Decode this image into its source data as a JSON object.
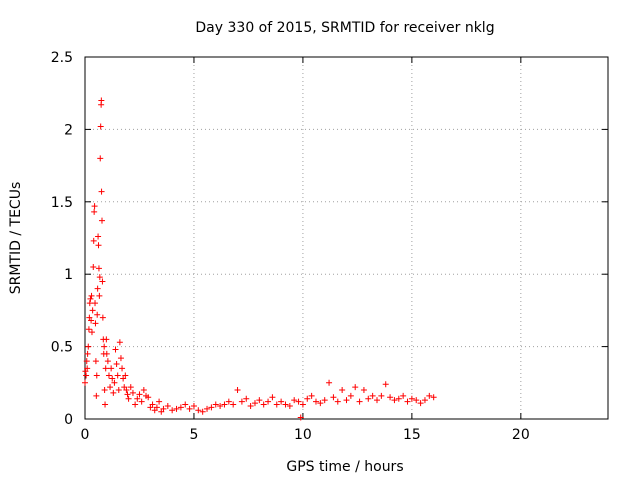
{
  "chart_data": {
    "type": "scatter",
    "title": "Day 330 of 2015, SRMTID for receiver nklg",
    "xlabel": "GPS time / hours",
    "ylabel": "SRMTID / TECUs",
    "xlim": [
      0,
      24
    ],
    "ylim": [
      0,
      2.5
    ],
    "grid": true,
    "marker": "+",
    "color": "#ff0000",
    "x_ticks": [
      {
        "value": 0,
        "label": "0"
      },
      {
        "value": 5,
        "label": "5"
      },
      {
        "value": 10,
        "label": "10"
      },
      {
        "value": 15,
        "label": "15"
      },
      {
        "value": 20,
        "label": "20"
      }
    ],
    "y_ticks": [
      {
        "value": 0,
        "label": "0"
      },
      {
        "value": 0.5,
        "label": "0.5"
      },
      {
        "value": 1,
        "label": "1"
      },
      {
        "value": 1.5,
        "label": "1.5"
      },
      {
        "value": 2,
        "label": "2"
      },
      {
        "value": 2.5,
        "label": "2.5"
      }
    ],
    "series": [
      {
        "name": "SRMTID",
        "points": [
          [
            0.0,
            0.25
          ],
          [
            0.02,
            0.33
          ],
          [
            0.05,
            0.3
          ],
          [
            0.08,
            0.4
          ],
          [
            0.1,
            0.35
          ],
          [
            0.12,
            0.45
          ],
          [
            0.15,
            0.5
          ],
          [
            0.18,
            0.62
          ],
          [
            0.2,
            0.7
          ],
          [
            0.22,
            0.8
          ],
          [
            0.25,
            0.83
          ],
          [
            0.28,
            0.68
          ],
          [
            0.3,
            0.85
          ],
          [
            0.32,
            0.6
          ],
          [
            0.35,
            0.75
          ],
          [
            0.38,
            1.05
          ],
          [
            0.4,
            1.23
          ],
          [
            0.42,
            1.43
          ],
          [
            0.44,
            1.47
          ],
          [
            0.46,
            0.8
          ],
          [
            0.48,
            0.66
          ],
          [
            0.5,
            0.4
          ],
          [
            0.52,
            0.16
          ],
          [
            0.54,
            0.3
          ],
          [
            0.56,
            0.72
          ],
          [
            0.58,
            0.9
          ],
          [
            0.6,
            1.26
          ],
          [
            0.62,
            1.2
          ],
          [
            0.64,
            1.04
          ],
          [
            0.66,
            0.85
          ],
          [
            0.68,
            0.98
          ],
          [
            0.7,
            1.8
          ],
          [
            0.72,
            2.02
          ],
          [
            0.74,
            2.17
          ],
          [
            0.75,
            2.2
          ],
          [
            0.76,
            1.57
          ],
          [
            0.78,
            1.37
          ],
          [
            0.8,
            0.95
          ],
          [
            0.82,
            0.7
          ],
          [
            0.84,
            0.55
          ],
          [
            0.86,
            0.45
          ],
          [
            0.88,
            0.5
          ],
          [
            0.9,
            0.2
          ],
          [
            0.92,
            0.1
          ],
          [
            0.95,
            0.35
          ],
          [
            0.98,
            0.55
          ],
          [
            1.0,
            0.45
          ],
          [
            1.05,
            0.4
          ],
          [
            1.1,
            0.3
          ],
          [
            1.15,
            0.22
          ],
          [
            1.2,
            0.35
          ],
          [
            1.25,
            0.28
          ],
          [
            1.3,
            0.18
          ],
          [
            1.35,
            0.25
          ],
          [
            1.4,
            0.48
          ],
          [
            1.45,
            0.38
          ],
          [
            1.5,
            0.3
          ],
          [
            1.55,
            0.2
          ],
          [
            1.6,
            0.53
          ],
          [
            1.65,
            0.42
          ],
          [
            1.7,
            0.35
          ],
          [
            1.75,
            0.28
          ],
          [
            1.8,
            0.22
          ],
          [
            1.85,
            0.3
          ],
          [
            1.9,
            0.2
          ],
          [
            1.95,
            0.17
          ],
          [
            2.0,
            0.14
          ],
          [
            2.1,
            0.22
          ],
          [
            2.2,
            0.18
          ],
          [
            2.3,
            0.1
          ],
          [
            2.4,
            0.14
          ],
          [
            2.5,
            0.17
          ],
          [
            2.6,
            0.12
          ],
          [
            2.7,
            0.2
          ],
          [
            2.8,
            0.16
          ],
          [
            2.9,
            0.15
          ],
          [
            3.0,
            0.08
          ],
          [
            3.1,
            0.1
          ],
          [
            3.2,
            0.06
          ],
          [
            3.3,
            0.08
          ],
          [
            3.4,
            0.12
          ],
          [
            3.5,
            0.05
          ],
          [
            3.6,
            0.07
          ],
          [
            3.8,
            0.09
          ],
          [
            4.0,
            0.06
          ],
          [
            4.2,
            0.07
          ],
          [
            4.4,
            0.08
          ],
          [
            4.6,
            0.1
          ],
          [
            4.8,
            0.07
          ],
          [
            5.0,
            0.09
          ],
          [
            5.2,
            0.06
          ],
          [
            5.4,
            0.05
          ],
          [
            5.6,
            0.07
          ],
          [
            5.8,
            0.08
          ],
          [
            6.0,
            0.1
          ],
          [
            6.2,
            0.09
          ],
          [
            6.4,
            0.1
          ],
          [
            6.6,
            0.12
          ],
          [
            6.8,
            0.1
          ],
          [
            7.0,
            0.2
          ],
          [
            7.2,
            0.12
          ],
          [
            7.4,
            0.14
          ],
          [
            7.6,
            0.09
          ],
          [
            7.8,
            0.11
          ],
          [
            8.0,
            0.13
          ],
          [
            8.2,
            0.1
          ],
          [
            8.4,
            0.12
          ],
          [
            8.6,
            0.15
          ],
          [
            8.8,
            0.1
          ],
          [
            9.0,
            0.12
          ],
          [
            9.2,
            0.1
          ],
          [
            9.4,
            0.09
          ],
          [
            9.6,
            0.13
          ],
          [
            9.8,
            0.12
          ],
          [
            9.9,
            0.01
          ],
          [
            10.0,
            0.1
          ],
          [
            10.2,
            0.14
          ],
          [
            10.4,
            0.16
          ],
          [
            10.6,
            0.12
          ],
          [
            10.8,
            0.11
          ],
          [
            11.0,
            0.13
          ],
          [
            11.2,
            0.25
          ],
          [
            11.4,
            0.15
          ],
          [
            11.6,
            0.12
          ],
          [
            11.8,
            0.2
          ],
          [
            12.0,
            0.13
          ],
          [
            12.2,
            0.16
          ],
          [
            12.4,
            0.22
          ],
          [
            12.6,
            0.12
          ],
          [
            12.8,
            0.2
          ],
          [
            13.0,
            0.14
          ],
          [
            13.2,
            0.16
          ],
          [
            13.4,
            0.13
          ],
          [
            13.6,
            0.16
          ],
          [
            13.8,
            0.24
          ],
          [
            14.0,
            0.15
          ],
          [
            14.2,
            0.13
          ],
          [
            14.4,
            0.14
          ],
          [
            14.6,
            0.16
          ],
          [
            14.8,
            0.12
          ],
          [
            15.0,
            0.14
          ],
          [
            15.2,
            0.13
          ],
          [
            15.4,
            0.11
          ],
          [
            15.6,
            0.13
          ],
          [
            15.8,
            0.16
          ],
          [
            16.0,
            0.15
          ]
        ]
      }
    ]
  }
}
